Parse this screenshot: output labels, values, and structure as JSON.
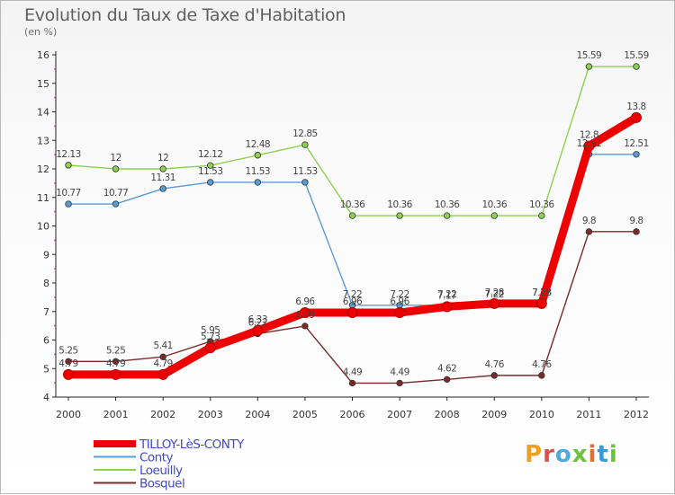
{
  "header": {
    "title": "Evolution du Taux de Taxe d'Habitation",
    "subtitle": "(en %)"
  },
  "logo": {
    "text": "Proxiti"
  },
  "chart_data": {
    "type": "line",
    "title": "Evolution du Taux de Taxe d'Habitation",
    "subtitle": "(en %)",
    "xlabel": "",
    "ylabel": "",
    "x": [
      2000,
      2001,
      2002,
      2003,
      2004,
      2005,
      2006,
      2007,
      2008,
      2009,
      2010,
      2011,
      2012
    ],
    "ylim": [
      4,
      16
    ],
    "yticks": [
      4,
      5,
      6,
      7,
      8,
      9,
      10,
      11,
      12,
      13,
      14,
      15,
      16
    ],
    "grid": false,
    "legend_position": "bottom",
    "series": [
      {
        "name": "TILLOY-LèS-CONTY",
        "color": "#ee0000",
        "values": [
          4.79,
          4.79,
          4.79,
          5.73,
          6.33,
          6.96,
          6.96,
          6.96,
          7.17,
          7.28,
          7.28,
          12.8,
          13.8
        ],
        "labels": [
          "4.79",
          "4.79",
          "4.79",
          "5.73",
          "6.33",
          "6.96",
          "6.96",
          "6.96",
          "7.17",
          "7.28",
          "7.28",
          "12.8",
          "13.8"
        ]
      },
      {
        "name": "Conty",
        "color": "#5b9bd5",
        "values": [
          10.77,
          10.77,
          11.31,
          11.53,
          11.53,
          11.53,
          7.22,
          7.22,
          7.22,
          7.22,
          7.28,
          12.51,
          12.51
        ],
        "labels": [
          "10.77",
          "10.77",
          "11.31",
          "11.53",
          "11.53",
          "11.53",
          "7.22",
          "7.22",
          "7.22",
          "7.22",
          "7.28",
          "12.51",
          "12.51"
        ]
      },
      {
        "name": "Loeuilly",
        "color": "#8ed050",
        "values": [
          12.13,
          12,
          12,
          12.12,
          12.48,
          12.85,
          10.36,
          10.36,
          10.36,
          10.36,
          10.36,
          15.59,
          15.59
        ],
        "labels": [
          "12.13",
          "12",
          "12",
          "12.12",
          "12.48",
          "12.85",
          "10.36",
          "10.36",
          "10.36",
          "10.36",
          "10.36",
          "15.59",
          "15.59"
        ]
      },
      {
        "name": "Bosquel",
        "color": "#7a2a2a",
        "values": [
          5.25,
          5.25,
          5.41,
          5.95,
          6.22,
          6.49,
          4.49,
          4.49,
          4.62,
          4.76,
          4.76,
          9.8,
          9.8
        ],
        "labels": [
          "5.25",
          "5.25",
          "5.41",
          "5.95",
          "6.22",
          "6.49",
          "4.49",
          "4.49",
          "4.62",
          "4.76",
          "4.76",
          "9.8",
          "9.8"
        ]
      }
    ]
  }
}
